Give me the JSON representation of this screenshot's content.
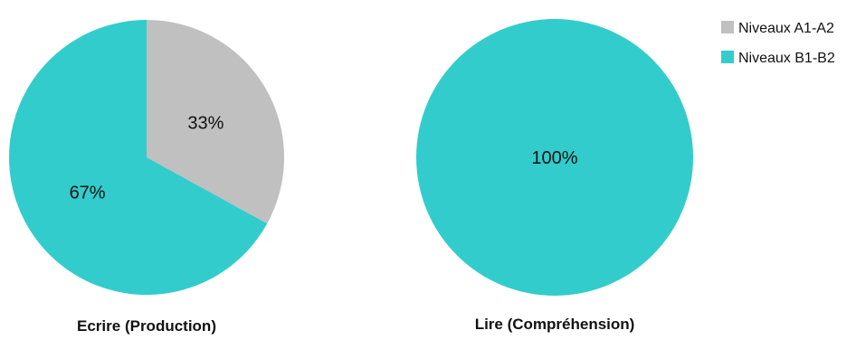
{
  "chart_data": [
    {
      "type": "pie",
      "title": "Ecrire (Production)",
      "categories": [
        "Niveaux A1-A2",
        "Niveaux B1-B2"
      ],
      "values": [
        33,
        67
      ],
      "labels": [
        "33%",
        "67%"
      ]
    },
    {
      "type": "pie",
      "title": "Lire (Compréhension)",
      "categories": [
        "Niveaux A1-A2",
        "Niveaux B1-B2"
      ],
      "values": [
        0,
        100
      ],
      "labels": [
        "",
        "100%"
      ]
    }
  ],
  "legend": {
    "placement": "top-right",
    "items": [
      {
        "label": "Niveaux A1-A2",
        "color": "#c0c0c0"
      },
      {
        "label": "Niveaux B1-B2",
        "color": "#33cccc"
      }
    ]
  },
  "colors": [
    "#c0c0c0",
    "#33cccc"
  ]
}
